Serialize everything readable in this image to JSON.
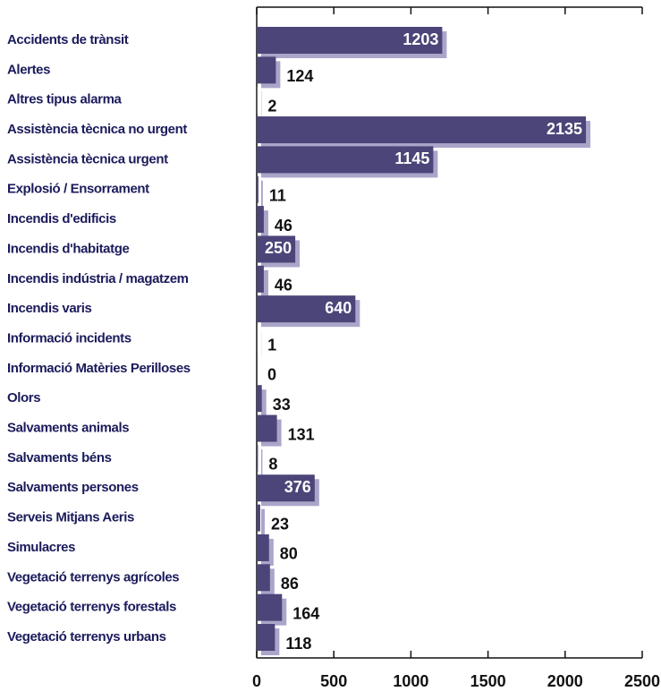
{
  "chart_data": {
    "type": "bar",
    "orientation": "horizontal",
    "categories": [
      "Accidents de trànsit",
      "Alertes",
      "Altres tipus alarma",
      "Assistència tècnica no urgent",
      "Assistència tècnica urgent",
      "Explosió / Ensorrament",
      "Incendis d'edificis",
      "Incendis d'habitatge",
      "Incendis indústria / magatzem",
      "Incendis varis",
      "Informació incidents",
      "Informació Matèries Perilloses",
      "Olors",
      "Salvaments animals",
      "Salvaments béns",
      "Salvaments persones",
      "Serveis Mitjans Aeris",
      "Simulacres",
      "Vegetació terrenys agrícoles",
      "Vegetació terrenys forestals",
      "Vegetació terrenys urbans"
    ],
    "values": [
      1203,
      124,
      2,
      2135,
      1145,
      11,
      46,
      250,
      46,
      640,
      1,
      0,
      33,
      131,
      8,
      376,
      23,
      80,
      86,
      164,
      118
    ],
    "color": "#4b4579",
    "shadow_color": "#aaa5c9",
    "xlim": [
      0,
      2500
    ],
    "xticks": [
      0,
      500,
      1000,
      1500,
      2000,
      2500
    ]
  }
}
